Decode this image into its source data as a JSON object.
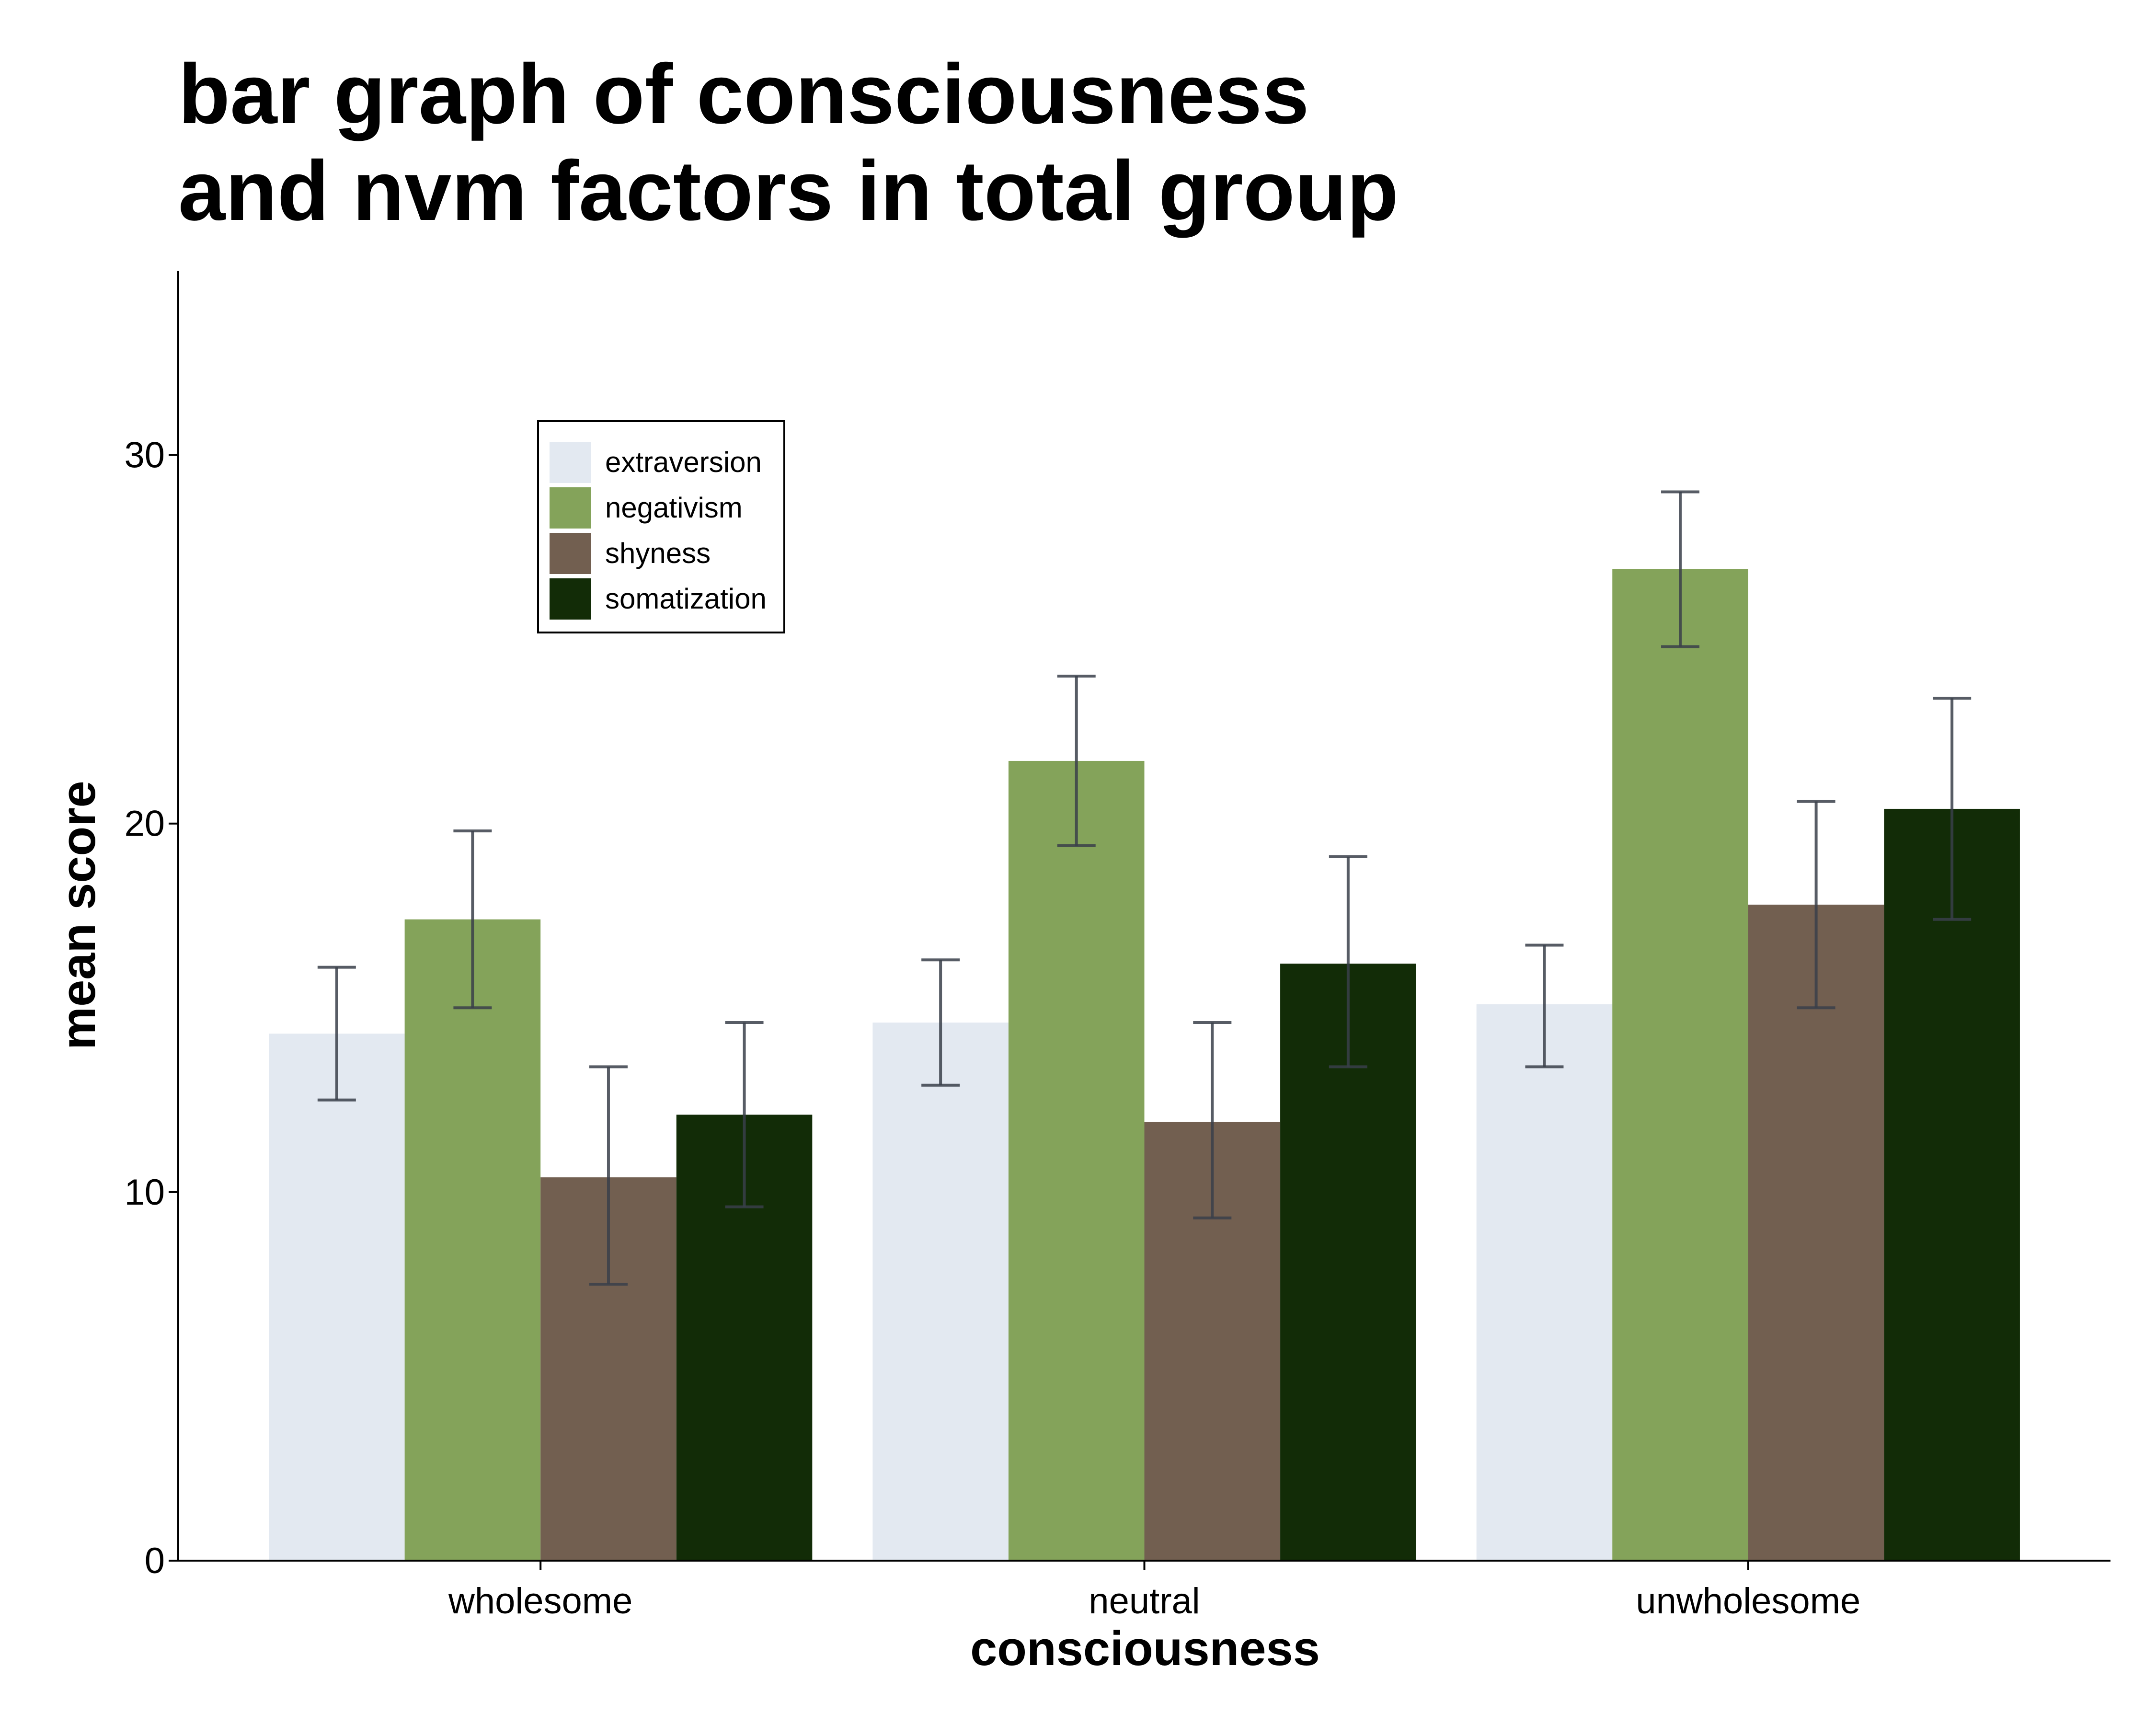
{
  "chart_data": {
    "type": "bar",
    "title_lines": [
      "bar graph of consciousness",
      "and nvm factors in total group"
    ],
    "xlabel": "consciousness",
    "ylabel": "mean score",
    "categories": [
      "wholesome",
      "neutral",
      "unwholesome"
    ],
    "ylim": [
      0,
      35
    ],
    "yticks": [
      0,
      10,
      20,
      30
    ],
    "grid": false,
    "legend_position": "top-left inside",
    "series": [
      {
        "name": "extraversion",
        "color": "#E3E9F1",
        "values": [
          14.3,
          14.6,
          15.1
        ],
        "error_low": [
          12.5,
          12.9,
          13.4
        ],
        "error_high": [
          16.1,
          16.3,
          16.7
        ]
      },
      {
        "name": "negativism",
        "color": "#84A35A",
        "values": [
          17.4,
          21.7,
          26.9
        ],
        "error_low": [
          15.0,
          19.4,
          24.8
        ],
        "error_high": [
          19.8,
          24.0,
          29.0
        ]
      },
      {
        "name": "shyness",
        "color": "#725F50",
        "values": [
          10.4,
          11.9,
          17.8
        ],
        "error_low": [
          7.5,
          9.3,
          15.0
        ],
        "error_high": [
          13.4,
          14.6,
          20.6
        ]
      },
      {
        "name": "somatization",
        "color": "#122C07",
        "values": [
          12.1,
          16.2,
          20.4
        ],
        "error_low": [
          9.6,
          13.4,
          17.4
        ],
        "error_high": [
          14.6,
          19.1,
          23.4
        ]
      }
    ],
    "error_bar_color": "#3A3F4A"
  }
}
